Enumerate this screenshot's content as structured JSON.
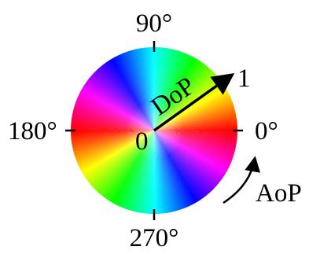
{
  "labels": {
    "angle_90": "90°",
    "angle_180": "180°",
    "angle_270": "270°",
    "angle_0": "0°",
    "center": "0",
    "radius_max": "1",
    "dop": "DoP",
    "aop": "AoP"
  },
  "wheel": {
    "hue_sequence": [
      "#ff0000",
      "#ffff00",
      "#00ff00",
      "#00ffff",
      "#0000ff",
      "#ff00ff",
      "#ff0000"
    ],
    "repeats_per_turn": 2
  },
  "colors": {
    "ink": "#000000",
    "background": "#ffffff"
  }
}
